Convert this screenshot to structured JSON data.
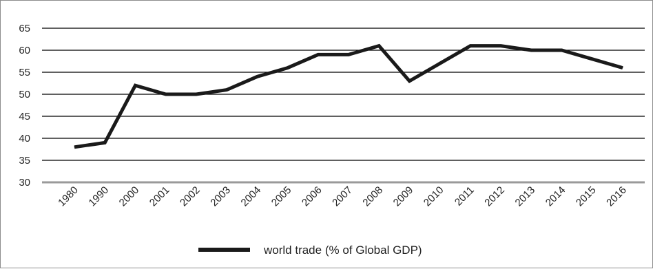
{
  "chart_data": {
    "type": "line",
    "title": "",
    "xlabel": "",
    "ylabel": "",
    "categories": [
      "1980",
      "1990",
      "2000",
      "2001",
      "2002",
      "2003",
      "2004",
      "2005",
      "2006",
      "2007",
      "2008",
      "2009",
      "2010",
      "2011",
      "2012",
      "2013",
      "2014",
      "2015",
      "2016"
    ],
    "series": [
      {
        "name": "world trade (% of Global GDP)",
        "values": [
          38,
          39,
          52,
          50,
          50,
          51,
          54,
          56,
          59,
          59,
          61,
          53,
          57,
          61,
          61,
          60,
          60,
          58,
          56
        ]
      }
    ],
    "ylim": [
      30,
      65
    ],
    "yticks": [
      30,
      35,
      40,
      45,
      50,
      55,
      60,
      65
    ],
    "grid": "horizontal",
    "legend_position": "bottom",
    "colors": {
      "series": "#1a1a1a",
      "gridline": "#000000",
      "baseline": "#9a9a9a"
    }
  }
}
